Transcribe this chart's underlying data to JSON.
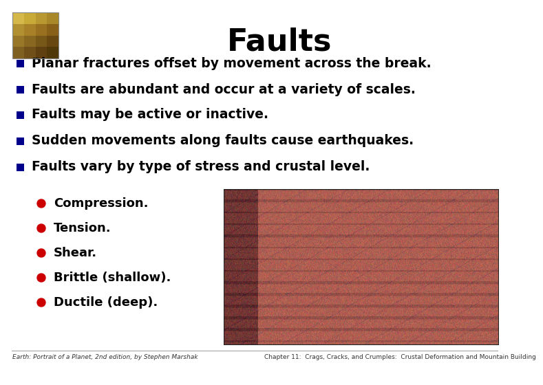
{
  "title": "Faults",
  "title_fontsize": 32,
  "title_fontweight": "bold",
  "background_color": "#ffffff",
  "bullet_color": "#00008B",
  "sub_bullet_color": "#cc0000",
  "text_color": "#000000",
  "bullet_points": [
    "Planar fractures offset by movement across the break.",
    "Faults are abundant and occur at a variety of scales.",
    "Faults may be active or inactive.",
    "Sudden movements along faults cause earthquakes.",
    "Faults vary by type of stress and crustal level."
  ],
  "sub_bullets": [
    "Compression.",
    "Tension.",
    "Shear.",
    "Brittle (shallow).",
    "Ductile (deep)."
  ],
  "bullet_fontsize": 13.5,
  "sub_bullet_fontsize": 13,
  "footer_left": "Earth: Portrait of a Planet, 2nd edition, by Stephen Marshak",
  "footer_right": "Chapter 11:  Crags, Cracks, and Crumples:  Crustal Deformation and Mountain Building",
  "footer_fontsize": 6.5,
  "icon_colors": [
    [
      "#d4b84a",
      "#c8aa38",
      "#b89830",
      "#a88828"
    ],
    [
      "#b09030",
      "#a88028",
      "#987020",
      "#886018"
    ],
    [
      "#987828",
      "#886820",
      "#785818",
      "#684810"
    ],
    [
      "#806020",
      "#705018",
      "#604010",
      "#503808"
    ]
  ]
}
